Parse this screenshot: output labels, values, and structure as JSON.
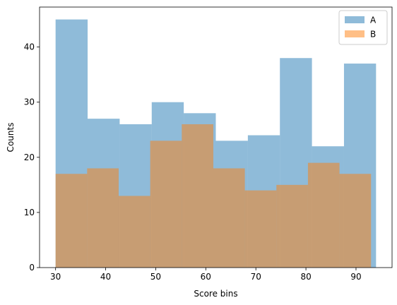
{
  "chart_data": {
    "type": "bar",
    "subtype": "overlaid-histogram",
    "title": "",
    "xlabel": "Score bins",
    "ylabel": "Counts",
    "xlim": [
      26.8,
      97.2
    ],
    "ylim": [
      0,
      47.25
    ],
    "xticks": [
      30,
      40,
      50,
      60,
      70,
      80,
      90
    ],
    "yticks": [
      0,
      10,
      20,
      30,
      40
    ],
    "legend": {
      "placement": "top-right"
    },
    "series": [
      {
        "name": "A",
        "color": "#1f77b4",
        "alpha": 0.5,
        "bin_edges": [
          30,
          36.4,
          42.8,
          49.2,
          55.6,
          62,
          68.4,
          74.8,
          81.2,
          87.6,
          94
        ],
        "counts": [
          45,
          27,
          26,
          30,
          28,
          23,
          24,
          38,
          22,
          37
        ]
      },
      {
        "name": "B",
        "color": "#ff7f0e",
        "alpha": 0.5,
        "bin_edges": [
          30,
          36.3,
          42.6,
          48.9,
          55.2,
          61.5,
          67.8,
          74.1,
          80.4,
          86.7,
          93
        ],
        "counts": [
          17,
          18,
          13,
          23,
          26,
          18,
          14,
          15,
          19,
          17
        ]
      }
    ]
  }
}
